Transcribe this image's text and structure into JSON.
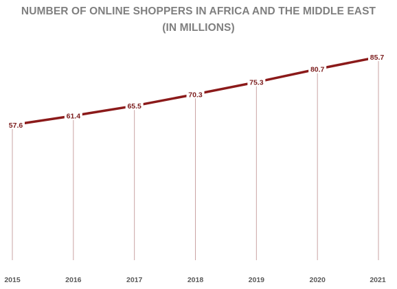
{
  "chart_data": {
    "type": "line",
    "title_line1": "NUMBER OF ONLINE SHOPPERS IN AFRICA AND THE MIDDLE EAST",
    "title_line2": "(IN MILLIONS)",
    "categories": [
      "2015",
      "2016",
      "2017",
      "2018",
      "2019",
      "2020",
      "2021"
    ],
    "series": [
      {
        "values": [
          57.6,
          61.4,
          65.5,
          70.3,
          75.3,
          80.7,
          85.7
        ],
        "labels": [
          "57.6",
          "61.4",
          "65.5",
          "70.3",
          "75.3",
          "80.7",
          "85.7"
        ]
      }
    ],
    "xlabel": "",
    "ylabel": "",
    "ylim": [
      0,
      90
    ],
    "grid": false,
    "drop_lines": true,
    "data_labels": true,
    "colors": {
      "line": "#8b1a1a",
      "drop_line": "#c9a3a3",
      "data_label": "#7b1c1c",
      "tick_label": "#595959",
      "title": "#7f7f7f"
    }
  }
}
